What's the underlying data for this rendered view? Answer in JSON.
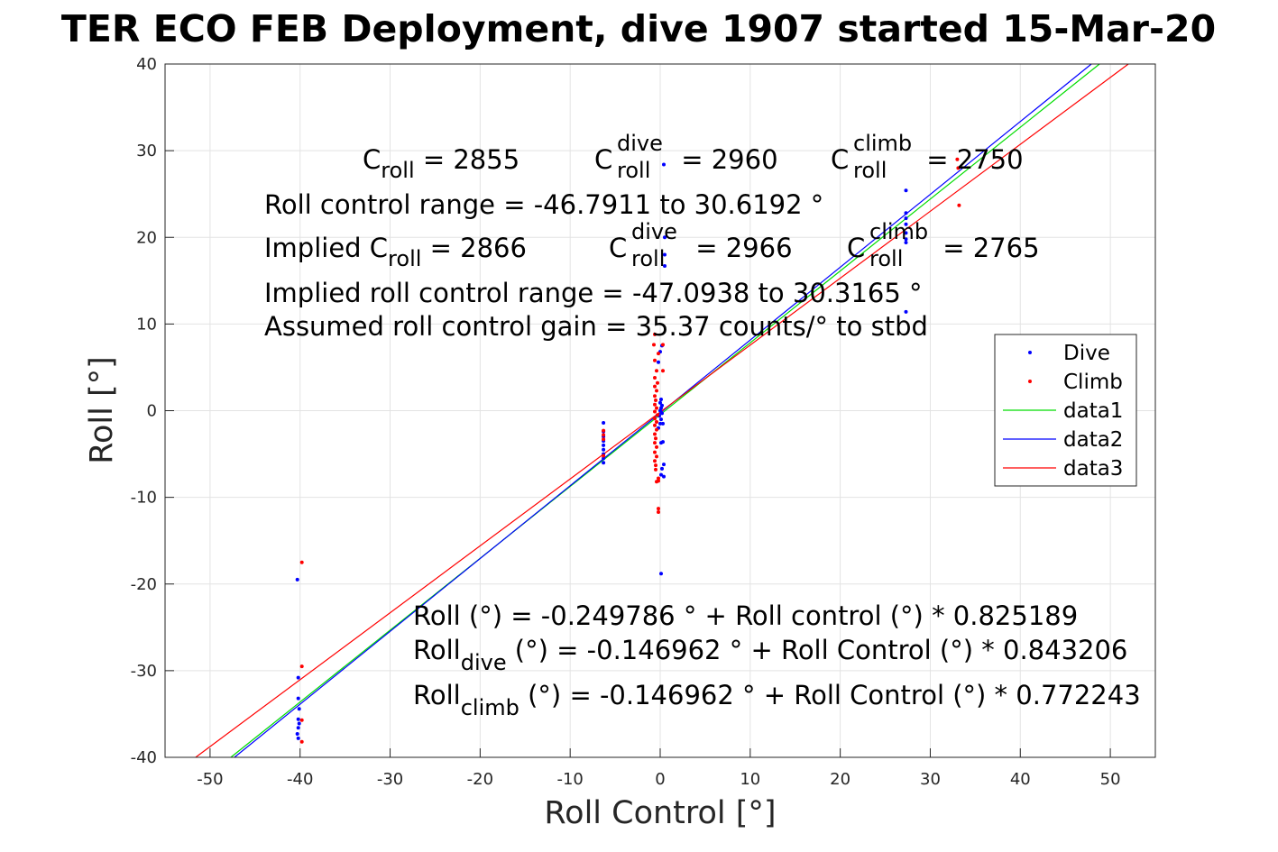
{
  "chart_data": {
    "type": "scatter",
    "title": "TER ECO FEB Deployment, dive 1907 started 15-Mar-20",
    "xlabel": "Roll Control [°]",
    "ylabel": "Roll [°]",
    "xlim": [
      -55,
      55
    ],
    "ylim": [
      -40,
      40
    ],
    "xticks": [
      -50,
      -40,
      -30,
      -20,
      -10,
      0,
      10,
      20,
      30,
      40,
      50
    ],
    "yticks": [
      -40,
      -30,
      -20,
      -10,
      0,
      10,
      20,
      30,
      40
    ],
    "grid": true,
    "legend_position": "right",
    "legend": [
      {
        "label": "Dive",
        "kind": "marker",
        "color": "#0000ff"
      },
      {
        "label": "Climb",
        "kind": "marker",
        "color": "#ff0000"
      },
      {
        "label": "data1",
        "kind": "line",
        "color": "#00dd00"
      },
      {
        "label": "data2",
        "kind": "line",
        "color": "#0000ff"
      },
      {
        "label": "data3",
        "kind": "line",
        "color": "#ff0000"
      }
    ],
    "series": [
      {
        "name": "Dive",
        "kind": "points",
        "color": "#0000ff",
        "points": [
          [
            -40.3,
            -19.5
          ],
          [
            -40.2,
            -30.8
          ],
          [
            -40.2,
            -33.2
          ],
          [
            -40.1,
            -34.4
          ],
          [
            -40.2,
            -35.6
          ],
          [
            -40.1,
            -36.1
          ],
          [
            -40.2,
            -36.6
          ],
          [
            -40.3,
            -37.3
          ],
          [
            -40.2,
            -37.8
          ],
          [
            -6.3,
            -1.4
          ],
          [
            -6.3,
            -2.4
          ],
          [
            -6.3,
            -3.0
          ],
          [
            -6.3,
            -3.5
          ],
          [
            -6.3,
            -4.0
          ],
          [
            -6.3,
            -4.5
          ],
          [
            -6.3,
            -5.0
          ],
          [
            -6.3,
            -5.5
          ],
          [
            -6.3,
            -6.0
          ],
          [
            0.4,
            28.4
          ],
          [
            0.5,
            20.0
          ],
          [
            0.5,
            18.0
          ],
          [
            0.5,
            16.7
          ],
          [
            0.2,
            7.5
          ],
          [
            0.0,
            6.8
          ],
          [
            -0.2,
            5.6
          ],
          [
            0.1,
            1.3
          ],
          [
            0.0,
            0.9
          ],
          [
            0.2,
            0.6
          ],
          [
            0.1,
            0.3
          ],
          [
            0.0,
            0.0
          ],
          [
            0.2,
            -0.3
          ],
          [
            -0.1,
            -0.6
          ],
          [
            0.1,
            -1.0
          ],
          [
            0.0,
            -1.5
          ],
          [
            0.3,
            -1.5
          ],
          [
            -0.2,
            -2.0
          ],
          [
            0.1,
            -3.7
          ],
          [
            0.3,
            -3.6
          ],
          [
            0.4,
            -6.2
          ],
          [
            0.2,
            -6.7
          ],
          [
            0.1,
            -7.4
          ],
          [
            0.4,
            -7.6
          ],
          [
            0.1,
            -18.8
          ],
          [
            27.3,
            25.4
          ],
          [
            27.3,
            22.8
          ],
          [
            27.3,
            22.2
          ],
          [
            27.3,
            21.5
          ],
          [
            27.3,
            20.5
          ],
          [
            27.3,
            19.8
          ],
          [
            27.3,
            19.4
          ],
          [
            27.3,
            11.4
          ]
        ]
      },
      {
        "name": "Climb",
        "kind": "points",
        "color": "#ff0000",
        "points": [
          [
            -39.8,
            -17.5
          ],
          [
            -39.8,
            -29.5
          ],
          [
            -39.8,
            -35.7
          ],
          [
            -39.8,
            -38.2
          ],
          [
            -6.3,
            -2.3
          ],
          [
            -6.3,
            -2.8
          ],
          [
            -6.3,
            -3.3
          ],
          [
            -6.3,
            -5.2
          ],
          [
            -0.6,
            8.8
          ],
          [
            -0.7,
            7.6
          ],
          [
            0.3,
            7.6
          ],
          [
            -0.2,
            6.6
          ],
          [
            -0.6,
            5.8
          ],
          [
            0.3,
            4.6
          ],
          [
            -0.4,
            4.6
          ],
          [
            -0.6,
            3.8
          ],
          [
            -0.3,
            3.2
          ],
          [
            -0.6,
            2.8
          ],
          [
            -0.4,
            2.3
          ],
          [
            -0.6,
            1.7
          ],
          [
            -0.5,
            1.2
          ],
          [
            -0.6,
            0.7
          ],
          [
            -0.4,
            0.3
          ],
          [
            -0.6,
            -0.1
          ],
          [
            -0.3,
            -0.5
          ],
          [
            -0.6,
            -0.9
          ],
          [
            -0.4,
            -1.3
          ],
          [
            -0.6,
            -1.7
          ],
          [
            -0.4,
            -2.2
          ],
          [
            -0.6,
            -2.7
          ],
          [
            -0.5,
            -3.2
          ],
          [
            -0.6,
            -3.7
          ],
          [
            -0.4,
            -4.2
          ],
          [
            -0.6,
            -4.8
          ],
          [
            -0.4,
            -5.3
          ],
          [
            -0.6,
            -5.8
          ],
          [
            -0.5,
            -6.3
          ],
          [
            -0.5,
            -6.8
          ],
          [
            -0.2,
            -7.8
          ],
          [
            -0.4,
            -8.2
          ],
          [
            -0.2,
            -8.1
          ],
          [
            -0.2,
            -11.3
          ],
          [
            -0.2,
            -11.7
          ],
          [
            33.0,
            29.0
          ],
          [
            33.1,
            28.0
          ],
          [
            33.2,
            23.7
          ]
        ]
      },
      {
        "name": "data1",
        "kind": "line",
        "color": "#00dd00",
        "points": [
          [
            -47.7,
            -40
          ],
          [
            48.8,
            40
          ]
        ]
      },
      {
        "name": "data2",
        "kind": "line",
        "color": "#0000ff",
        "points": [
          [
            -47.3,
            -40
          ],
          [
            47.9,
            40
          ]
        ]
      },
      {
        "name": "data3",
        "kind": "line",
        "color": "#ff0000",
        "points": [
          [
            -51.6,
            -40
          ],
          [
            52.0,
            40
          ]
        ]
      }
    ],
    "annotations": {
      "line1": [
        {
          "base": "C",
          "sub": "roll",
          "value": " = 2855"
        },
        {
          "base": "C",
          "sup": "dive",
          "sub": "roll",
          "value": " = 2960"
        },
        {
          "base": "C",
          "sup": "climb",
          "sub": "roll",
          "value": " = 2750"
        }
      ],
      "line2": "Roll control range = -46.7911 to 30.6192 °",
      "line3": [
        {
          "base": "Implied C",
          "sub": "roll",
          "value": " = 2866"
        },
        {
          "base": "C",
          "sup": "dive",
          "sub": "roll",
          "value": " = 2966"
        },
        {
          "base": "C",
          "sup": "climb",
          "sub": "roll",
          "value": " = 2765"
        }
      ],
      "line4": "Implied roll control range = -47.0938 to 30.3165 °",
      "line5": "Assumed roll control gain = 35.37 counts/° to stbd",
      "eq1": "Roll (°) = -0.249786 ° + Roll control (°) * 0.825189",
      "eq2": {
        "base": "Roll",
        "sub": "dive",
        "value": " (°) = -0.146962 ° + Roll Control (°) * 0.843206"
      },
      "eq3": {
        "base": "Roll",
        "sub": "climb",
        "value": " (°) = -0.146962 ° + Roll Control (°) * 0.772243"
      }
    }
  }
}
